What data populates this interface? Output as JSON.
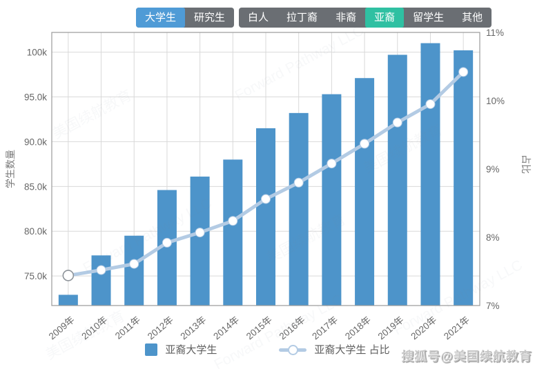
{
  "tabs": {
    "level": {
      "items": [
        {
          "label": "大学生",
          "active": true
        },
        {
          "label": "研究生",
          "active": false
        }
      ]
    },
    "ethnicity": {
      "items": [
        {
          "label": "白人",
          "active": false
        },
        {
          "label": "拉丁裔",
          "active": false
        },
        {
          "label": "非裔",
          "active": false
        },
        {
          "label": "亚裔",
          "active": true
        },
        {
          "label": "留学生",
          "active": false
        },
        {
          "label": "其他",
          "active": false
        }
      ]
    }
  },
  "colors": {
    "bar": "#4d94ca",
    "line": "#b3cbe4",
    "point_fill": "#ffffff",
    "first_point_stroke": "#8d9399",
    "tab_active_blue": "#4f9bd6",
    "tab_active_teal": "#2fc0a2",
    "tab_group_bg": "#6a6e73",
    "grid": "#d9d9d9",
    "frame": "#9a9a9a",
    "axis_text": "#666666",
    "axis_title_text": "#7a7a7a"
  },
  "chart_data": {
    "type": "bar",
    "categories": [
      "2009年",
      "2010年",
      "2011年",
      "2012年",
      "2013年",
      "2014年",
      "2015年",
      "2016年",
      "2017年",
      "2018年",
      "2019年",
      "2020年",
      "2021年"
    ],
    "series": [
      {
        "name": "亚裔大学生",
        "type": "bar",
        "axis": "left",
        "values": [
          72900,
          77300,
          79500,
          84600,
          86100,
          88000,
          91500,
          93200,
          95300,
          97100,
          99700,
          101000,
          100200
        ]
      },
      {
        "name": "亚裔大学生 占比",
        "type": "line",
        "axis": "right",
        "values": [
          7.44,
          7.52,
          7.61,
          7.92,
          8.07,
          8.24,
          8.56,
          8.8,
          9.08,
          9.37,
          9.68,
          9.95,
          10.42
        ]
      }
    ],
    "left_axis": {
      "title": "学生数量",
      "ticks": [
        "100k",
        "95.0k",
        "90.0k",
        "85.0k",
        "80.0k",
        "75.0k"
      ],
      "tick_values": [
        100000,
        95000,
        90000,
        85000,
        80000,
        75000
      ],
      "min": 71700,
      "max": 102200
    },
    "right_axis": {
      "title": "占比",
      "ticks": [
        "11%",
        "10%",
        "9%",
        "8%",
        "7%"
      ],
      "tick_values": [
        11,
        10,
        9,
        8,
        7
      ],
      "min": 7,
      "max": 11
    },
    "legend": [
      {
        "label": "亚裔大学生",
        "symbol": "square"
      },
      {
        "label": "亚裔大学生 占比",
        "symbol": "line-circle"
      }
    ],
    "grid": true,
    "legend_position": "bottom"
  },
  "watermarks": {
    "sohu": "搜狐号@美国续航教育",
    "diagonal": [
      "美国续航教育",
      "Forward Pathway LLC"
    ]
  }
}
